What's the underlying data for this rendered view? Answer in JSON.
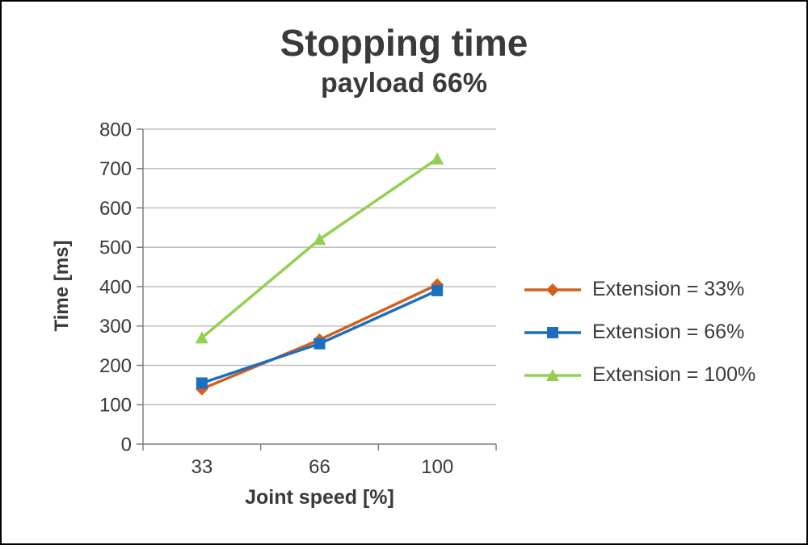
{
  "colors": {
    "background": "#FFFFFF",
    "border": "#000000",
    "grid": "#BFBFBF",
    "axis": "#7F7F7F",
    "text": "#3A3A3A"
  },
  "chart_data": {
    "type": "line",
    "title": "Stopping time",
    "subtitle": "payload 66%",
    "xlabel": "Joint speed [%]",
    "ylabel": "Time [ms]",
    "categories": [
      "33",
      "66",
      "100"
    ],
    "ylim": [
      0,
      800
    ],
    "ytick_step": 100,
    "grid": "horizontal",
    "legend_position": "right",
    "series": [
      {
        "name": "Extension = 33%",
        "color": "#D1611E",
        "marker": "diamond",
        "values": [
          140,
          265,
          405
        ]
      },
      {
        "name": "Extension = 66%",
        "color": "#1C6FBF",
        "marker": "square",
        "values": [
          155,
          255,
          390
        ]
      },
      {
        "name": "Extension = 100%",
        "color": "#92D050",
        "marker": "triangle",
        "values": [
          270,
          520,
          725
        ]
      }
    ]
  }
}
